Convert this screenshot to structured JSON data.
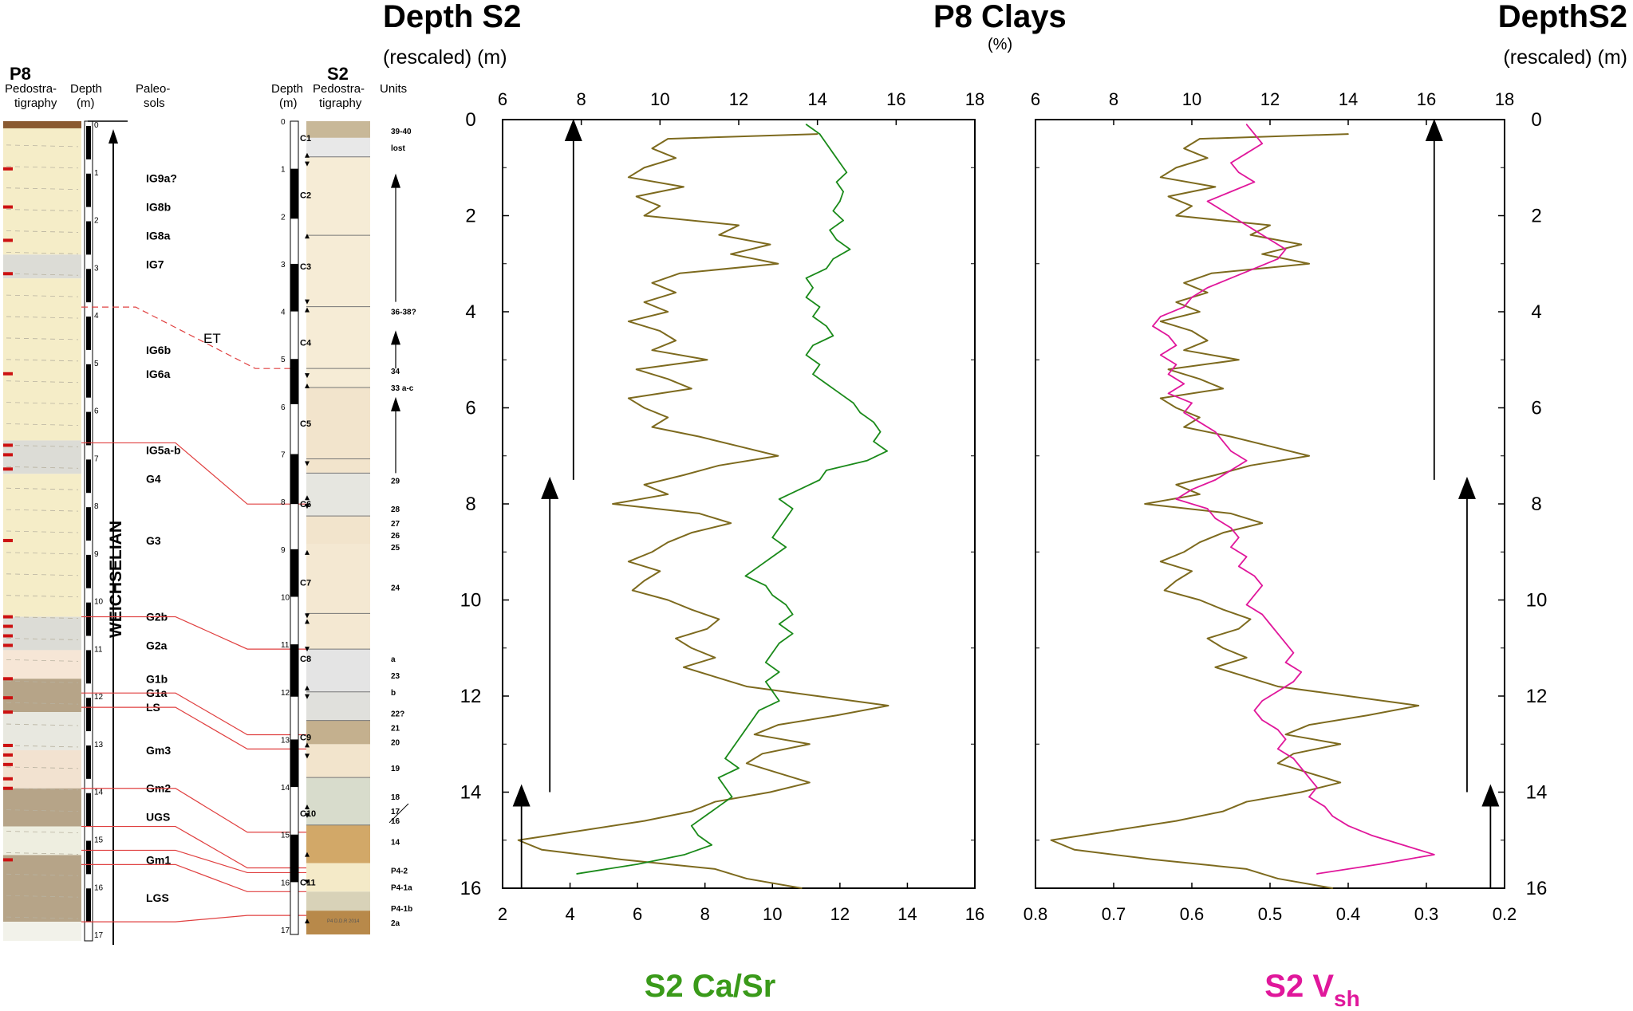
{
  "headers": {
    "left_title": "Depth S2",
    "left_sub": "(rescaled) (m)",
    "center_title": "P8 Clays",
    "center_unit": "(%)",
    "right_title": "DepthS2",
    "right_sub": "(rescaled) (m)",
    "bottom_left": "S2 Ca/Sr",
    "bottom_right_main": "S2 V",
    "bottom_right_sub": "sh"
  },
  "colors": {
    "clay": "#7d6a1e",
    "ca_sr": "#1a8a1a",
    "vsh": "#e0179b",
    "link": "#e04040",
    "pedo_red": "#cc1111",
    "loess": "#f5edc8",
    "brown": "#b6a488",
    "grey": "#dcdcd6"
  },
  "p8_column": {
    "title": "P8",
    "col_pedo": [
      "Pedostra-",
      "tigraphy"
    ],
    "col_depth": [
      "Depth",
      "(m)"
    ],
    "col_paleo": [
      "Paleo-",
      "sols"
    ],
    "depth_ticks": [
      "0",
      "1",
      "2",
      "3",
      "4",
      "5",
      "6",
      "7",
      "8",
      "9",
      "10",
      "11",
      "12",
      "13",
      "14",
      "15",
      "16",
      "17"
    ],
    "stage_label": "WEICHSELIAN",
    "paleosols": [
      {
        "label": "IG9a?",
        "depth": 1.2
      },
      {
        "label": "IG8b",
        "depth": 1.8
      },
      {
        "label": "IG8a",
        "depth": 2.4
      },
      {
        "label": "IG7",
        "depth": 3.0
      },
      {
        "label": "IG6b",
        "depth": 4.8
      },
      {
        "label": "IG6a",
        "depth": 5.3
      },
      {
        "label": "IG5a-b",
        "depth": 6.9
      },
      {
        "label": "G4",
        "depth": 7.5
      },
      {
        "label": "G3",
        "depth": 8.8
      },
      {
        "label": "G2b",
        "depth": 10.4
      },
      {
        "label": "G2a",
        "depth": 11.0
      },
      {
        "label": "G1b",
        "depth": 11.7
      },
      {
        "label": "G1a",
        "depth": 12.0
      },
      {
        "label": "LS",
        "depth": 12.3
      },
      {
        "label": "Gm3",
        "depth": 13.2
      },
      {
        "label": "Gm2",
        "depth": 14.0
      },
      {
        "label": "UGS",
        "depth": 14.6
      },
      {
        "label": "Gm1",
        "depth": 15.5
      },
      {
        "label": "LGS",
        "depth": 16.3
      }
    ],
    "et_label": "ET"
  },
  "s2_column": {
    "title": "S2",
    "col_depth": [
      "Depth",
      "(m)"
    ],
    "col_pedo": [
      "Pedostra-",
      "tigraphy"
    ],
    "col_units": "Units",
    "depth_ticks": [
      "0",
      "1",
      "2",
      "3",
      "4",
      "5",
      "6",
      "7",
      "8",
      "9",
      "10",
      "11",
      "12",
      "13",
      "14",
      "15",
      "16",
      "17"
    ],
    "cores": [
      {
        "label": "C1",
        "depth": 0.35
      },
      {
        "label": "C2",
        "depth": 1.55
      },
      {
        "label": "C3",
        "depth": 3.05
      },
      {
        "label": "C4",
        "depth": 4.65
      },
      {
        "label": "C5",
        "depth": 6.35
      },
      {
        "label": "C6",
        "depth": 8.05
      },
      {
        "label": "C7",
        "depth": 9.7
      },
      {
        "label": "C8",
        "depth": 11.3
      },
      {
        "label": "C9",
        "depth": 12.95
      },
      {
        "label": "C10",
        "depth": 14.55
      },
      {
        "label": "C11",
        "depth": 16.0
      }
    ],
    "units": [
      {
        "label": "39-40",
        "depth": 0.2
      },
      {
        "label": "lost",
        "depth": 0.55
      },
      {
        "label": "36-38?",
        "depth": 4.0
      },
      {
        "label": "34",
        "depth": 5.25
      },
      {
        "label": "33 a-c",
        "depth": 5.6
      },
      {
        "label": "29",
        "depth": 7.55
      },
      {
        "label": "28",
        "depth": 8.15
      },
      {
        "label": "27",
        "depth": 8.45
      },
      {
        "label": "26",
        "depth": 8.7
      },
      {
        "label": "25",
        "depth": 8.95
      },
      {
        "label": "24",
        "depth": 9.8
      },
      {
        "label": "a",
        "depth": 11.3
      },
      {
        "label": "23",
        "depth": 11.65
      },
      {
        "label": "b",
        "depth": 12.0
      },
      {
        "label": "22?",
        "depth": 12.45
      },
      {
        "label": "21",
        "depth": 12.75
      },
      {
        "label": "20",
        "depth": 13.05
      },
      {
        "label": "19",
        "depth": 13.6
      },
      {
        "label": "18",
        "depth": 14.2
      },
      {
        "label": "17",
        "depth": 14.5
      },
      {
        "label": "16",
        "depth": 14.7
      },
      {
        "label": "14",
        "depth": 15.15
      },
      {
        "label": "P4-2",
        "depth": 15.75
      },
      {
        "label": "P4-1a",
        "depth": 16.1
      },
      {
        "label": "P4-1b",
        "depth": 16.55
      },
      {
        "label": "2a",
        "depth": 16.85
      }
    ],
    "legend_strip": "P4 D.D.R 2014"
  },
  "chart_data": [
    {
      "type": "line",
      "name": "left-panel",
      "y_label": "Depth S2 (rescaled) (m)",
      "ylim": [
        16,
        0
      ],
      "y_ticks": [
        0,
        2,
        4,
        6,
        8,
        10,
        12,
        14,
        16
      ],
      "top_axis": {
        "label": "P8 Clays (%)",
        "lim": [
          6,
          18
        ],
        "ticks": [
          6,
          8,
          10,
          12,
          14,
          16,
          18
        ]
      },
      "bottom_axis": {
        "label": "S2 Ca/Sr",
        "lim": [
          2,
          16
        ],
        "ticks": [
          2,
          4,
          6,
          8,
          10,
          12,
          14,
          16
        ]
      },
      "series": [
        {
          "name": "P8 Clays",
          "axis": "top",
          "depth": [
            0.3,
            0.4,
            0.6,
            0.8,
            1.0,
            1.2,
            1.4,
            1.6,
            1.8,
            2.0,
            2.2,
            2.4,
            2.6,
            2.8,
            3.0,
            3.2,
            3.4,
            3.6,
            3.8,
            4.0,
            4.2,
            4.4,
            4.6,
            4.8,
            5.0,
            5.2,
            5.4,
            5.6,
            5.8,
            6.0,
            6.2,
            6.4,
            6.6,
            6.8,
            7.0,
            7.2,
            7.4,
            7.6,
            7.8,
            8.0,
            8.2,
            8.4,
            8.6,
            8.8,
            9.0,
            9.2,
            9.4,
            9.6,
            9.8,
            10.0,
            10.2,
            10.4,
            10.6,
            10.8,
            11.0,
            11.2,
            11.4,
            11.6,
            11.8,
            12.0,
            12.2,
            12.4,
            12.6,
            12.8,
            13.0,
            13.2,
            13.4,
            13.6,
            13.8,
            14.0,
            14.2,
            14.4,
            14.6,
            14.8,
            15.0,
            15.2,
            15.4,
            15.6,
            15.8,
            16.0
          ],
          "values": [
            14.0,
            10.2,
            9.8,
            10.4,
            9.6,
            9.2,
            10.6,
            9.4,
            10.0,
            9.6,
            12.0,
            11.5,
            12.8,
            11.8,
            13.0,
            10.5,
            9.8,
            10.4,
            9.6,
            10.2,
            9.2,
            10.0,
            10.4,
            9.8,
            11.2,
            9.4,
            10.2,
            10.8,
            9.2,
            9.6,
            10.2,
            9.8,
            11.0,
            12.0,
            13.0,
            11.5,
            10.6,
            9.6,
            10.2,
            8.8,
            11.0,
            11.8,
            10.8,
            10.2,
            9.8,
            9.2,
            10.0,
            9.6,
            9.3,
            10.2,
            10.8,
            11.5,
            11.2,
            10.4,
            10.8,
            11.4,
            10.6,
            11.4,
            12.2,
            14.0,
            15.8,
            14.5,
            13.0,
            12.4,
            13.8,
            12.6,
            12.2,
            13.0,
            13.8,
            12.8,
            11.4,
            10.8,
            9.6,
            8.0,
            6.4,
            7.0,
            9.0,
            11.4,
            12.2,
            13.6
          ]
        },
        {
          "name": "S2 Ca/Sr",
          "axis": "bottom",
          "depth": [
            0.1,
            0.3,
            0.5,
            0.7,
            0.9,
            1.1,
            1.3,
            1.5,
            1.7,
            1.9,
            2.1,
            2.3,
            2.5,
            2.7,
            2.9,
            3.1,
            3.3,
            3.5,
            3.7,
            3.9,
            4.1,
            4.3,
            4.5,
            4.7,
            4.9,
            5.1,
            5.3,
            5.5,
            5.7,
            5.9,
            6.1,
            6.3,
            6.5,
            6.7,
            6.9,
            7.1,
            7.3,
            7.5,
            7.7,
            7.9,
            8.1,
            8.3,
            8.5,
            8.7,
            8.9,
            9.1,
            9.3,
            9.5,
            9.7,
            9.9,
            10.1,
            10.3,
            10.5,
            10.7,
            10.9,
            11.1,
            11.3,
            11.5,
            11.7,
            11.9,
            12.1,
            12.3,
            12.5,
            12.7,
            12.9,
            13.1,
            13.3,
            13.5,
            13.7,
            13.9,
            14.1,
            14.3,
            14.5,
            14.7,
            14.9,
            15.1,
            15.3,
            15.5,
            15.7
          ],
          "values": [
            11.0,
            11.4,
            11.6,
            11.8,
            12.0,
            12.2,
            11.9,
            12.1,
            12.0,
            11.8,
            12.1,
            11.7,
            11.9,
            12.3,
            11.8,
            11.6,
            11.0,
            11.2,
            11.0,
            11.4,
            11.2,
            11.6,
            11.8,
            11.2,
            11.0,
            11.4,
            11.2,
            11.6,
            12.0,
            12.4,
            12.6,
            13.0,
            13.2,
            13.0,
            13.4,
            12.8,
            11.6,
            11.4,
            10.8,
            10.2,
            10.6,
            10.4,
            10.2,
            10.0,
            10.4,
            10.0,
            9.6,
            9.2,
            9.8,
            10.0,
            10.4,
            10.6,
            10.2,
            10.6,
            10.2,
            10.0,
            9.8,
            10.2,
            9.8,
            10.0,
            10.2,
            9.6,
            9.4,
            9.2,
            9.0,
            8.8,
            8.6,
            9.0,
            8.4,
            8.6,
            8.8,
            8.4,
            8.0,
            7.6,
            7.8,
            8.2,
            7.4,
            6.0,
            4.2
          ]
        }
      ],
      "arrows": [
        {
          "x_frac": 0.15,
          "from_depth": 7.5,
          "to_depth": 0.05
        },
        {
          "x_frac": 0.1,
          "from_depth": 14.0,
          "to_depth": 7.5
        },
        {
          "x_frac": 0.04,
          "from_depth": 16.0,
          "to_depth": 13.9
        }
      ]
    },
    {
      "type": "line",
      "name": "right-panel",
      "y_label": "DepthS2 (rescaled) (m)",
      "ylim": [
        16,
        0
      ],
      "y_ticks": [
        0,
        2,
        4,
        6,
        8,
        10,
        12,
        14,
        16
      ],
      "top_axis": {
        "label": "P8 Clays (%)",
        "lim": [
          6,
          18
        ],
        "ticks": [
          6,
          8,
          10,
          12,
          14,
          16,
          18
        ]
      },
      "bottom_axis": {
        "label": "S2 Vsh",
        "lim": [
          0.8,
          0.2
        ],
        "ticks": [
          0.8,
          0.7,
          0.6,
          0.5,
          0.4,
          0.3,
          0.2
        ]
      },
      "series": [
        {
          "name": "P8 Clays",
          "axis": "top",
          "depth": [
            0.3,
            0.4,
            0.6,
            0.8,
            1.0,
            1.2,
            1.4,
            1.6,
            1.8,
            2.0,
            2.2,
            2.4,
            2.6,
            2.8,
            3.0,
            3.2,
            3.4,
            3.6,
            3.8,
            4.0,
            4.2,
            4.4,
            4.6,
            4.8,
            5.0,
            5.2,
            5.4,
            5.6,
            5.8,
            6.0,
            6.2,
            6.4,
            6.6,
            6.8,
            7.0,
            7.2,
            7.4,
            7.6,
            7.8,
            8.0,
            8.2,
            8.4,
            8.6,
            8.8,
            9.0,
            9.2,
            9.4,
            9.6,
            9.8,
            10.0,
            10.2,
            10.4,
            10.6,
            10.8,
            11.0,
            11.2,
            11.4,
            11.6,
            11.8,
            12.0,
            12.2,
            12.4,
            12.6,
            12.8,
            13.0,
            13.2,
            13.4,
            13.6,
            13.8,
            14.0,
            14.2,
            14.4,
            14.6,
            14.8,
            15.0,
            15.2,
            15.4,
            15.6,
            15.8,
            16.0
          ],
          "values": [
            14.0,
            10.2,
            9.8,
            10.4,
            9.6,
            9.2,
            10.6,
            9.4,
            10.0,
            9.6,
            12.0,
            11.5,
            12.8,
            11.8,
            13.0,
            10.5,
            9.8,
            10.4,
            9.6,
            10.2,
            9.2,
            10.0,
            10.4,
            9.8,
            11.2,
            9.4,
            10.2,
            10.8,
            9.2,
            9.6,
            10.2,
            9.8,
            11.0,
            12.0,
            13.0,
            11.5,
            10.6,
            9.6,
            10.2,
            8.8,
            11.0,
            11.8,
            10.8,
            10.2,
            9.8,
            9.2,
            10.0,
            9.6,
            9.3,
            10.2,
            10.8,
            11.5,
            11.2,
            10.4,
            10.8,
            11.4,
            10.6,
            11.4,
            12.2,
            14.0,
            15.8,
            14.5,
            13.0,
            12.4,
            13.8,
            12.6,
            12.2,
            13.0,
            13.8,
            12.8,
            11.4,
            10.8,
            9.6,
            8.0,
            6.4,
            7.0,
            9.0,
            11.4,
            12.2,
            13.6
          ]
        },
        {
          "name": "S2 Vsh",
          "axis": "bottom",
          "depth": [
            0.1,
            0.3,
            0.5,
            0.7,
            0.9,
            1.1,
            1.3,
            1.5,
            1.7,
            1.9,
            2.1,
            2.3,
            2.5,
            2.7,
            2.9,
            3.1,
            3.3,
            3.5,
            3.7,
            3.9,
            4.1,
            4.3,
            4.5,
            4.7,
            4.9,
            5.1,
            5.3,
            5.5,
            5.7,
            5.9,
            6.1,
            6.3,
            6.5,
            6.7,
            6.9,
            7.1,
            7.3,
            7.5,
            7.7,
            7.9,
            8.1,
            8.3,
            8.5,
            8.7,
            8.9,
            9.1,
            9.3,
            9.5,
            9.7,
            9.9,
            10.1,
            10.3,
            10.5,
            10.7,
            10.9,
            11.1,
            11.3,
            11.5,
            11.7,
            11.9,
            12.1,
            12.3,
            12.5,
            12.7,
            12.9,
            13.1,
            13.3,
            13.5,
            13.7,
            13.9,
            14.1,
            14.3,
            14.5,
            14.7,
            14.9,
            15.1,
            15.3,
            15.5,
            15.7
          ],
          "values": [
            0.53,
            0.52,
            0.51,
            0.53,
            0.55,
            0.54,
            0.52,
            0.55,
            0.58,
            0.56,
            0.54,
            0.52,
            0.5,
            0.48,
            0.49,
            0.52,
            0.55,
            0.58,
            0.6,
            0.61,
            0.64,
            0.65,
            0.63,
            0.62,
            0.64,
            0.62,
            0.63,
            0.61,
            0.63,
            0.6,
            0.61,
            0.59,
            0.57,
            0.56,
            0.55,
            0.53,
            0.55,
            0.57,
            0.6,
            0.62,
            0.58,
            0.57,
            0.55,
            0.54,
            0.55,
            0.53,
            0.54,
            0.52,
            0.51,
            0.52,
            0.53,
            0.51,
            0.5,
            0.49,
            0.48,
            0.47,
            0.48,
            0.46,
            0.47,
            0.49,
            0.51,
            0.52,
            0.51,
            0.49,
            0.48,
            0.49,
            0.47,
            0.46,
            0.45,
            0.44,
            0.45,
            0.43,
            0.42,
            0.4,
            0.37,
            0.33,
            0.29,
            0.36,
            0.44
          ]
        }
      ],
      "arrows": [
        {
          "x_frac": 0.85,
          "from_depth": 7.5,
          "to_depth": 0.05
        },
        {
          "x_frac": 0.92,
          "from_depth": 14.0,
          "to_depth": 7.5
        },
        {
          "x_frac": 0.97,
          "from_depth": 16.0,
          "to_depth": 13.9
        }
      ]
    }
  ]
}
